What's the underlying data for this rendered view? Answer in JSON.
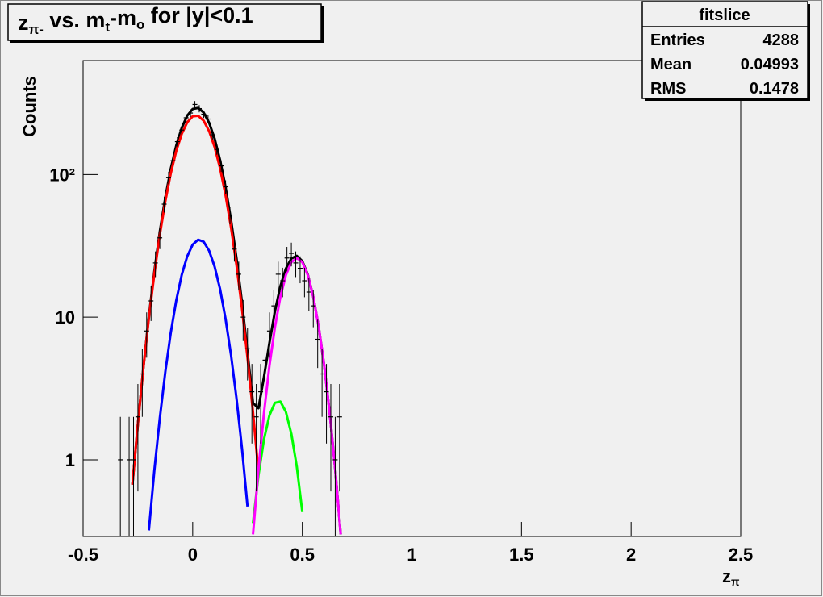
{
  "chart_data": {
    "type": "scatter",
    "title": [
      {
        "text": "z"
      },
      {
        "text": "π-",
        "subscript": true
      },
      {
        "text": " vs. m"
      },
      {
        "text": "t",
        "subscript": true
      },
      {
        "text": "-m"
      },
      {
        "text": "o",
        "subscript": true
      },
      {
        "text": " for |y|<0.1"
      }
    ],
    "xlabel": [
      {
        "text": "z"
      },
      {
        "text": "π",
        "subscript": true
      }
    ],
    "ylabel": "Counts",
    "x": [
      -0.33,
      -0.29,
      -0.27,
      -0.25,
      -0.23,
      -0.21,
      -0.19,
      -0.17,
      -0.15,
      -0.13,
      -0.11,
      -0.09,
      -0.07,
      -0.05,
      -0.03,
      -0.01,
      0.01,
      0.03,
      0.05,
      0.07,
      0.09,
      0.11,
      0.13,
      0.15,
      0.17,
      0.19,
      0.21,
      0.23,
      0.25,
      0.27,
      0.29,
      0.31,
      0.33,
      0.35,
      0.37,
      0.39,
      0.41,
      0.43,
      0.45,
      0.47,
      0.49,
      0.51,
      0.53,
      0.55,
      0.57,
      0.59,
      0.61,
      0.63,
      0.65,
      0.67
    ],
    "values": [
      1,
      1,
      1,
      2,
      4,
      8,
      13,
      24,
      36,
      62,
      95,
      125,
      170,
      205,
      250,
      270,
      310,
      290,
      265,
      245,
      190,
      150,
      115,
      82,
      52,
      30,
      20,
      10,
      6,
      3,
      2,
      3,
      5,
      8,
      12,
      20,
      18,
      26,
      28,
      24,
      22,
      18,
      15,
      12,
      7,
      4,
      3,
      2,
      1,
      2
    ],
    "errors": [
      1,
      1,
      1,
      1.4,
      2,
      2.8,
      3.6,
      4.9,
      6,
      7.9,
      9.7,
      11.2,
      13,
      14.3,
      15.8,
      16.4,
      17.6,
      17,
      16.3,
      15.7,
      13.8,
      12.2,
      10.7,
      9.1,
      7.2,
      5.5,
      4.5,
      3.2,
      2.4,
      1.7,
      1.4,
      1.7,
      2.2,
      2.8,
      3.5,
      4.5,
      4.2,
      5.1,
      5.3,
      4.9,
      4.7,
      4.2,
      3.9,
      3.5,
      2.6,
      2,
      1.7,
      1.4,
      1,
      1.4
    ],
    "color": "#000000",
    "curves": {
      "type": "line",
      "x": [
        -0.3,
        -0.275,
        -0.25,
        -0.225,
        -0.2,
        -0.175,
        -0.15,
        -0.125,
        -0.1,
        -0.075,
        -0.05,
        -0.025,
        0,
        0.025,
        0.05,
        0.075,
        0.1,
        0.125,
        0.15,
        0.175,
        0.2,
        0.225,
        0.25,
        0.275,
        0.3,
        0.325,
        0.35,
        0.375,
        0.4,
        0.425,
        0.45,
        0.475,
        0.5,
        0.525,
        0.55,
        0.575,
        0.6,
        0.625,
        0.65,
        0.675,
        0.7
      ],
      "series": [
        {
          "color": "#000000",
          "values": [
            null,
            0.67,
            1.79,
            4.4,
            10.1,
            20.9,
            39.8,
            68.9,
            109.7,
            159.6,
            212.5,
            258.8,
            288.2,
            293.1,
            272.2,
            230.6,
            178.4,
            126,
            81.2,
            47.8,
            25.7,
            12.6,
            5.67,
            2.5,
            2.3,
            3.8,
            6.6,
            11.0,
            16.5,
            21.9,
            25.8,
            26.9,
            24.7,
            19.9,
            13.9,
            8.5,
            4.56,
            2.12,
            0.86,
            0.3,
            null
          ]
        },
        {
          "color": "#ff0000",
          "values": [
            null,
            0.67,
            1.79,
            4.4,
            9.8,
            20.1,
            37.8,
            64.8,
            101.9,
            146.5,
            192.7,
            232.1,
            255.9,
            258.2,
            238.4,
            201.4,
            155.8,
            110.3,
            71.5,
            42.4,
            23.0,
            11.4,
            5.2,
            2.16,
            0.82,
            null,
            null,
            null,
            null,
            null,
            null,
            null,
            null,
            null,
            null,
            null,
            null,
            null,
            null,
            null,
            null
          ]
        },
        {
          "color": "#0000ff",
          "values": [
            null,
            null,
            null,
            null,
            0.32,
            0.84,
            1.96,
            4.13,
            7.79,
            13.1,
            19.8,
            26.7,
            32.3,
            34.9,
            33.8,
            29.2,
            22.6,
            15.7,
            9.7,
            5.4,
            2.68,
            1.19,
            0.47,
            null,
            null,
            null,
            null,
            null,
            null,
            null,
            null,
            null,
            null,
            null,
            null,
            null,
            null,
            null,
            null,
            null,
            null
          ]
        },
        {
          "color": "#00ff00",
          "values": [
            null,
            null,
            null,
            null,
            null,
            null,
            null,
            null,
            null,
            null,
            null,
            null,
            null,
            null,
            null,
            null,
            null,
            null,
            null,
            null,
            null,
            null,
            null,
            0.36,
            0.78,
            1.39,
            2.05,
            2.51,
            2.56,
            2.17,
            1.52,
            0.89,
            0.43,
            null,
            null,
            null,
            null,
            null,
            null,
            null,
            null
          ]
        },
        {
          "color": "#ff00ff",
          "values": [
            null,
            null,
            null,
            null,
            null,
            null,
            null,
            null,
            null,
            null,
            null,
            null,
            null,
            null,
            null,
            null,
            null,
            null,
            null,
            null,
            null,
            null,
            null,
            0.3,
            0.86,
            2.12,
            4.56,
            8.5,
            13.9,
            19.7,
            24.3,
            26,
            24.3,
            19.7,
            13.9,
            8.5,
            4.56,
            2.12,
            0.86,
            0.3,
            null
          ]
        }
      ]
    },
    "xlim": [
      -0.5,
      2.5
    ],
    "xticks": [
      -0.5,
      0,
      0.5,
      1,
      1.5,
      2,
      2.5
    ],
    "ylim": [
      0.29,
      630
    ],
    "yticks": [
      1,
      10,
      {
        "value": 100,
        "label": "10²"
      }
    ],
    "log_y": true,
    "stats": {
      "title": "fitslice",
      "rows": [
        {
          "label": "Entries",
          "value": 4288
        },
        {
          "label": "Mean",
          "value": 0.04993
        },
        {
          "label": "RMS",
          "value": 0.1478
        }
      ]
    }
  }
}
